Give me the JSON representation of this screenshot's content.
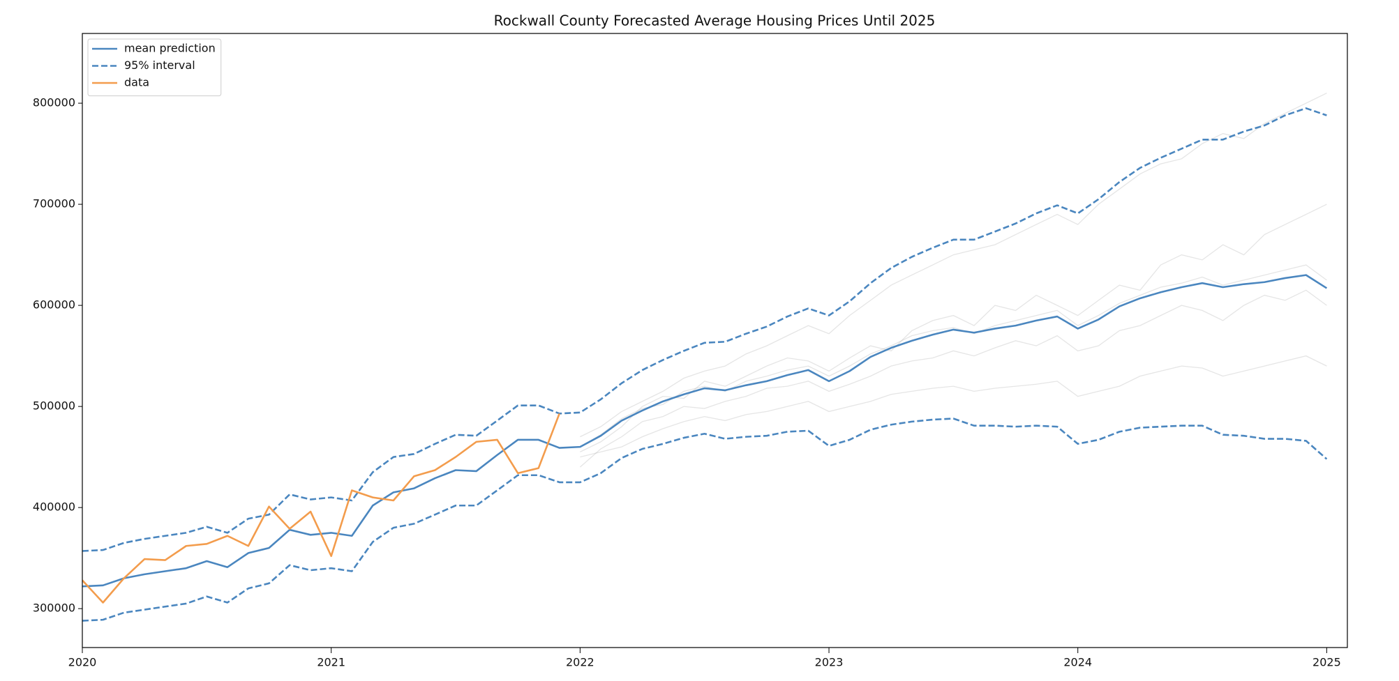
{
  "chart_data": {
    "type": "line",
    "title": "Rockwall County Forecasted Average Housing Prices Until 2025",
    "x": [
      2020,
      2020.083,
      2020.167,
      2020.25,
      2020.333,
      2020.417,
      2020.5,
      2020.583,
      2020.667,
      2020.75,
      2020.833,
      2020.917,
      2021,
      2021.083,
      2021.167,
      2021.25,
      2021.333,
      2021.417,
      2021.5,
      2021.583,
      2021.667,
      2021.75,
      2021.833,
      2021.917,
      2022,
      2022.083,
      2022.167,
      2022.25,
      2022.333,
      2022.417,
      2022.5,
      2022.583,
      2022.667,
      2022.75,
      2022.833,
      2022.917,
      2023,
      2023.083,
      2023.167,
      2023.25,
      2023.333,
      2023.417,
      2023.5,
      2023.583,
      2023.667,
      2023.75,
      2023.833,
      2023.917,
      2024,
      2024.083,
      2024.167,
      2024.25,
      2024.333,
      2024.417,
      2024.5,
      2024.583,
      2024.667,
      2024.75,
      2024.833,
      2024.917,
      2025
    ],
    "series": [
      {
        "name": "mean prediction",
        "color": "#4a86bf",
        "linestyle": "solid",
        "values": [
          322000,
          323000,
          330000,
          334000,
          337000,
          340000,
          347000,
          341000,
          355000,
          360000,
          378000,
          373000,
          375000,
          372000,
          402000,
          415000,
          419000,
          429000,
          437000,
          436000,
          452000,
          467000,
          467000,
          459000,
          460000,
          471000,
          486000,
          496000,
          505000,
          512000,
          518000,
          516000,
          521000,
          525000,
          531000,
          536000,
          525000,
          535000,
          549000,
          558000,
          565000,
          571000,
          576000,
          573000,
          577000,
          580000,
          585000,
          589000,
          577000,
          586000,
          599000,
          607000,
          613000,
          618000,
          622000,
          618000,
          621000,
          623000,
          627000,
          630000,
          617000
        ]
      },
      {
        "name": "95% interval",
        "color": "#4a86bf",
        "linestyle": "dashed",
        "upper": [
          357000,
          358000,
          365000,
          369000,
          372000,
          375000,
          381000,
          375000,
          389000,
          393000,
          413000,
          408000,
          410000,
          407000,
          435000,
          450000,
          453000,
          463000,
          472000,
          471000,
          486000,
          501000,
          501000,
          493000,
          494000,
          507000,
          523000,
          536000,
          546000,
          555000,
          563000,
          564000,
          572000,
          579000,
          589000,
          597000,
          590000,
          604000,
          622000,
          637000,
          648000,
          657000,
          665000,
          665000,
          673000,
          681000,
          691000,
          699000,
          691000,
          705000,
          722000,
          736000,
          746000,
          755000,
          764000,
          764000,
          772000,
          778000,
          788000,
          795000,
          788000
        ],
        "lower": [
          288000,
          289000,
          296000,
          299000,
          302000,
          305000,
          312000,
          306000,
          320000,
          325000,
          343000,
          338000,
          340000,
          337000,
          366000,
          380000,
          384000,
          393000,
          402000,
          402000,
          417000,
          432000,
          432000,
          425000,
          425000,
          434000,
          449000,
          458000,
          463000,
          469000,
          473000,
          468000,
          470000,
          471000,
          475000,
          476000,
          461000,
          467000,
          477000,
          482000,
          485000,
          487000,
          488000,
          481000,
          481000,
          480000,
          481000,
          480000,
          463000,
          467000,
          475000,
          479000,
          480000,
          481000,
          481000,
          472000,
          471000,
          468000,
          468000,
          466000,
          448000
        ]
      },
      {
        "name": "data",
        "color": "#f39c4c",
        "linestyle": "solid",
        "values": [
          328000,
          306000,
          330000,
          349000,
          348000,
          362000,
          364000,
          372000,
          362000,
          401000,
          379000,
          396000,
          352000,
          417000,
          410000,
          407000,
          431000,
          437000,
          450000,
          465000,
          467000,
          434000,
          439000,
          493000,
          null,
          null,
          null,
          null,
          null,
          null,
          null,
          null,
          null,
          null,
          null,
          null,
          null,
          null,
          null,
          null,
          null,
          null,
          null,
          null,
          null,
          null,
          null,
          null,
          null,
          null,
          null,
          null,
          null,
          null,
          null,
          null,
          null,
          null,
          null,
          null,
          null
        ]
      }
    ],
    "samples": {
      "color": "#999999",
      "values": [
        [
          null,
          null,
          null,
          null,
          null,
          null,
          null,
          null,
          null,
          null,
          null,
          null,
          null,
          null,
          null,
          null,
          null,
          null,
          null,
          null,
          null,
          null,
          null,
          null,
          470000,
          480000,
          495000,
          505000,
          515000,
          528000,
          535000,
          540000,
          552000,
          560000,
          570000,
          580000,
          572000,
          590000,
          605000,
          620000,
          630000,
          640000,
          650000,
          655000,
          660000,
          670000,
          680000,
          690000,
          680000,
          700000,
          715000,
          730000,
          740000,
          745000,
          760000,
          770000,
          765000,
          780000,
          790000,
          800000,
          810000
        ],
        [
          null,
          null,
          null,
          null,
          null,
          null,
          null,
          null,
          null,
          null,
          null,
          null,
          null,
          null,
          null,
          null,
          null,
          null,
          null,
          null,
          null,
          null,
          null,
          null,
          450000,
          455000,
          460000,
          470000,
          478000,
          485000,
          490000,
          486000,
          492000,
          495000,
          500000,
          505000,
          495000,
          500000,
          505000,
          512000,
          515000,
          518000,
          520000,
          515000,
          518000,
          520000,
          522000,
          525000,
          510000,
          515000,
          520000,
          530000,
          535000,
          540000,
          538000,
          530000,
          535000,
          540000,
          545000,
          550000,
          540000
        ],
        [
          null,
          null,
          null,
          null,
          null,
          null,
          null,
          null,
          null,
          null,
          null,
          null,
          null,
          null,
          null,
          null,
          null,
          null,
          null,
          null,
          null,
          null,
          null,
          null,
          460000,
          472000,
          488000,
          498000,
          502000,
          515000,
          520000,
          515000,
          525000,
          530000,
          536000,
          540000,
          530000,
          540000,
          552000,
          560000,
          570000,
          575000,
          578000,
          572000,
          580000,
          585000,
          590000,
          595000,
          580000,
          590000,
          602000,
          610000,
          618000,
          622000,
          628000,
          620000,
          625000,
          630000,
          635000,
          640000,
          625000
        ],
        [
          null,
          null,
          null,
          null,
          null,
          null,
          null,
          null,
          null,
          null,
          null,
          null,
          null,
          null,
          null,
          null,
          null,
          null,
          null,
          null,
          null,
          null,
          null,
          null,
          455000,
          465000,
          480000,
          500000,
          510000,
          508000,
          525000,
          520000,
          530000,
          540000,
          548000,
          545000,
          535000,
          548000,
          560000,
          555000,
          575000,
          585000,
          590000,
          580000,
          600000,
          595000,
          610000,
          600000,
          590000,
          605000,
          620000,
          615000,
          640000,
          650000,
          645000,
          660000,
          650000,
          670000,
          680000,
          690000,
          700000
        ],
        [
          null,
          null,
          null,
          null,
          null,
          null,
          null,
          null,
          null,
          null,
          null,
          null,
          null,
          null,
          null,
          null,
          null,
          null,
          null,
          null,
          null,
          null,
          null,
          null,
          440000,
          458000,
          470000,
          485000,
          490000,
          500000,
          498000,
          505000,
          510000,
          518000,
          520000,
          525000,
          515000,
          522000,
          530000,
          540000,
          545000,
          548000,
          555000,
          550000,
          558000,
          565000,
          560000,
          570000,
          555000,
          560000,
          575000,
          580000,
          590000,
          600000,
          595000,
          585000,
          600000,
          610000,
          605000,
          615000,
          600000
        ]
      ]
    },
    "xlim": [
      2020,
      2025.083
    ],
    "xticks": [
      2020,
      2021,
      2022,
      2023,
      2024,
      2025
    ],
    "ylim": [
      261500,
      869000
    ],
    "yticks": [
      300000,
      400000,
      500000,
      600000,
      700000,
      800000
    ],
    "grid": false,
    "legend": "upper left"
  }
}
